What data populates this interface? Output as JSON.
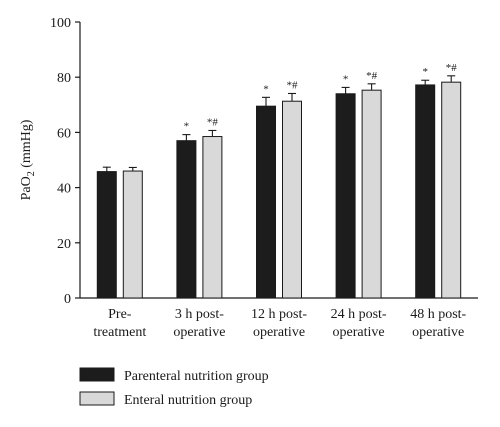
{
  "chart_data": {
    "type": "bar",
    "title": "",
    "ylabel": "PaO",
    "ylabel_sub": "2",
    "ylabel_unit": " (mmHg)",
    "ylim": [
      0,
      100
    ],
    "yticks": [
      "0",
      "20",
      "40",
      "60",
      "80",
      "100"
    ],
    "ytick_values": [
      0,
      20,
      40,
      60,
      80,
      100
    ],
    "categories": [
      [
        "Pre-",
        "treatment"
      ],
      [
        "3 h post-",
        "operative"
      ],
      [
        "12 h post-",
        "operative"
      ],
      [
        "24 h post-",
        "operative"
      ],
      [
        "48 h post-",
        "operative"
      ]
    ],
    "series": [
      {
        "name": "Parenteral nutrition group",
        "color": "#1c1c1c",
        "values": [
          45.8,
          57.0,
          69.5,
          74.0,
          77.2
        ],
        "errors": [
          1.6,
          2.2,
          3.2,
          2.3,
          1.7
        ],
        "annotations": [
          "",
          "*",
          "*",
          "*",
          "*"
        ]
      },
      {
        "name": "Enteral nutrition group",
        "color": "#d9d9d9",
        "values": [
          46.0,
          58.5,
          71.3,
          75.3,
          78.2
        ],
        "errors": [
          1.3,
          2.2,
          2.8,
          2.3,
          2.3
        ],
        "annotations": [
          "",
          "*#",
          "*#",
          "*#",
          "*#"
        ]
      }
    ],
    "grid": false,
    "legend_position": "bottom-left"
  }
}
